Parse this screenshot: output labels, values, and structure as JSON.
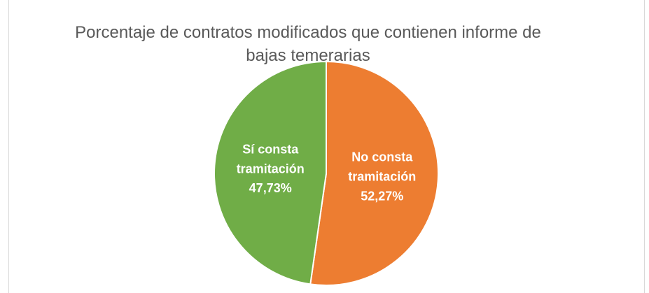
{
  "chart_data": {
    "type": "pie",
    "title": "Porcentaje de contratos modificados que contienen informe de bajas temerarias",
    "categories": [
      "No consta tramitación",
      "Sí consta tramitación"
    ],
    "values": [
      52.27,
      47.73
    ],
    "value_labels": [
      "52,27%",
      "47,73%"
    ],
    "colors": [
      "#ed7d31",
      "#70ad47"
    ]
  }
}
